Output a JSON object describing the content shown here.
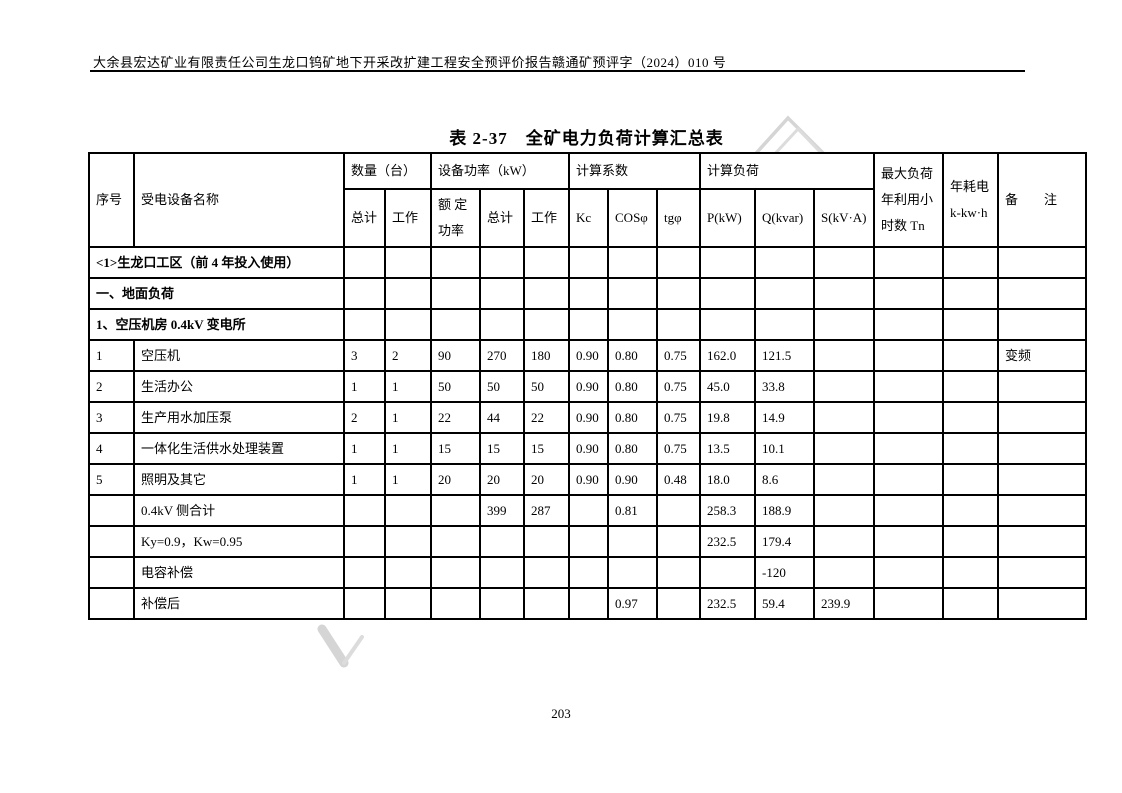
{
  "page": {
    "header_text": "大余县宏达矿业有限责任公司生龙口钨矿地下开采改扩建工程安全预评价报告赣通矿预评字（2024）010 号",
    "page_number": "203"
  },
  "watermark": {
    "color": "#d5d5d5",
    "description": "faint logo fragments"
  },
  "table": {
    "title": "表 2-37　全矿电力负荷计算汇总表",
    "header": {
      "xuhao": "序号",
      "name": "受电设备名称",
      "quantity_group": "数量（台）",
      "power_group": "设备功率（kW）",
      "coeff_group": "计算系数",
      "load_group": "计算负荷",
      "qty_total": "总计",
      "qty_work": "工作",
      "rated_power": "额 定\n功率",
      "pow_total": "总计",
      "pow_work": "工作",
      "kc": "Kc",
      "cos": "COSφ",
      "tg": "tgφ",
      "p": "P(kW)",
      "q": "Q(kvar)",
      "s": "S(kV·A)",
      "tn": "最大负荷\n年利用小\n时数  Tn",
      "annual": "年耗电\nk-kw·h",
      "remark": "备　　注"
    },
    "rows": [
      {
        "type": "section",
        "label": "<1>生龙口工区（前 4 年投入使用）"
      },
      {
        "type": "section",
        "label": "一、地面负荷"
      },
      {
        "type": "section",
        "label": "1、空压机房 0.4kV 变电所"
      },
      {
        "type": "data",
        "cells": [
          "1",
          "空压机",
          "3",
          "2",
          "90",
          "270",
          "180",
          "0.90",
          "0.80",
          "0.75",
          "162.0",
          "121.5",
          "",
          "",
          "",
          "变频"
        ]
      },
      {
        "type": "data",
        "cells": [
          "2",
          "生活办公",
          "1",
          "1",
          "50",
          "50",
          "50",
          "0.90",
          "0.80",
          "0.75",
          "45.0",
          "33.8",
          "",
          "",
          "",
          ""
        ]
      },
      {
        "type": "data",
        "cells": [
          "3",
          "生产用水加压泵",
          "2",
          "1",
          "22",
          "44",
          "22",
          "0.90",
          "0.80",
          "0.75",
          "19.8",
          "14.9",
          "",
          "",
          "",
          ""
        ]
      },
      {
        "type": "data",
        "cells": [
          "4",
          "一体化生活供水处理装置",
          "1",
          "1",
          "15",
          "15",
          "15",
          "0.90",
          "0.80",
          "0.75",
          "13.5",
          "10.1",
          "",
          "",
          "",
          ""
        ]
      },
      {
        "type": "data",
        "cells": [
          "5",
          "照明及其它",
          "1",
          "1",
          "20",
          "20",
          "20",
          "0.90",
          "0.90",
          "0.48",
          "18.0",
          "8.6",
          "",
          "",
          "",
          ""
        ]
      },
      {
        "type": "data",
        "cells": [
          "",
          "0.4kV 侧合计",
          "",
          "",
          "",
          "399",
          "287",
          "",
          "0.81",
          "",
          "258.3",
          "188.9",
          "",
          "",
          "",
          ""
        ]
      },
      {
        "type": "data",
        "cells": [
          "",
          "Ky=0.9，Kw=0.95",
          "",
          "",
          "",
          "",
          "",
          "",
          "",
          "",
          "232.5",
          "179.4",
          "",
          "",
          "",
          ""
        ]
      },
      {
        "type": "data",
        "cells": [
          "",
          "电容补偿",
          "",
          "",
          "",
          "",
          "",
          "",
          "",
          "",
          "",
          "-120",
          "",
          "",
          "",
          ""
        ]
      },
      {
        "type": "data",
        "cells": [
          "",
          "补偿后",
          "",
          "",
          "",
          "",
          "",
          "",
          "0.97",
          "",
          "232.5",
          "59.4",
          "239.9",
          "",
          "",
          ""
        ]
      }
    ]
  }
}
